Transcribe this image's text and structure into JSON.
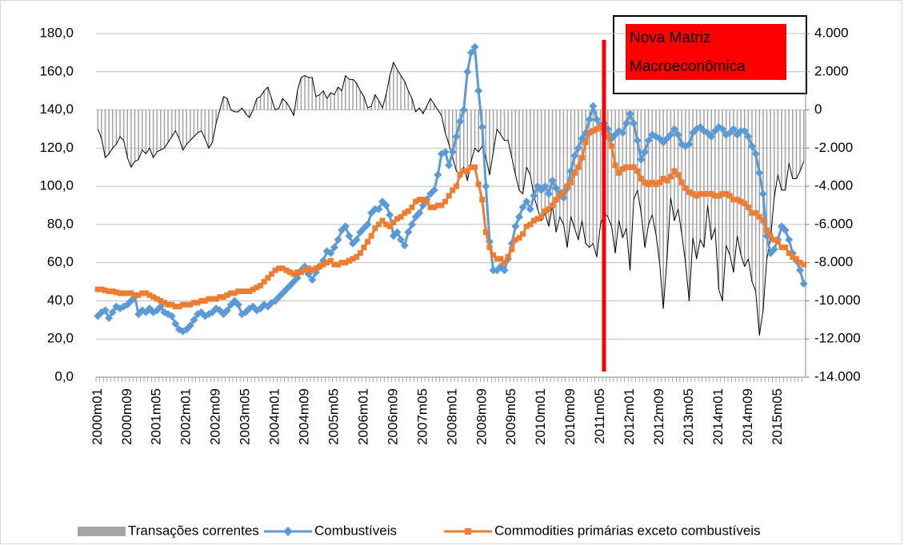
{
  "chart_data": {
    "type": "combo",
    "annotation": "Nova Matriz Macroeconômica",
    "categories": [
      "2000m01",
      null,
      null,
      null,
      null,
      null,
      null,
      null,
      "2000m09",
      null,
      null,
      null,
      null,
      null,
      null,
      null,
      "2001m05",
      null,
      null,
      null,
      null,
      null,
      null,
      null,
      "2002m01",
      null,
      null,
      null,
      null,
      null,
      null,
      null,
      "2002m09",
      null,
      null,
      null,
      null,
      null,
      null,
      null,
      "2003m05",
      null,
      null,
      null,
      null,
      null,
      null,
      null,
      "2004m01",
      null,
      null,
      null,
      null,
      null,
      null,
      null,
      "2004m09",
      null,
      null,
      null,
      null,
      null,
      null,
      null,
      "2005m05",
      null,
      null,
      null,
      null,
      null,
      null,
      null,
      "2006m01",
      null,
      null,
      null,
      null,
      null,
      null,
      null,
      "2006m09",
      null,
      null,
      null,
      null,
      null,
      null,
      null,
      "2007m05",
      null,
      null,
      null,
      null,
      null,
      null,
      null,
      "2008m01",
      null,
      null,
      null,
      null,
      null,
      null,
      null,
      "2008m09",
      null,
      null,
      null,
      null,
      null,
      null,
      null,
      "2009m05",
      null,
      null,
      null,
      null,
      null,
      null,
      null,
      "2010m01",
      null,
      null,
      null,
      null,
      null,
      null,
      null,
      "2010m09",
      null,
      null,
      null,
      null,
      null,
      null,
      null,
      "2011m05",
      null,
      null,
      null,
      null,
      null,
      null,
      null,
      "2012m01",
      null,
      null,
      null,
      null,
      null,
      null,
      null,
      "2012m09",
      null,
      null,
      null,
      null,
      null,
      null,
      null,
      "2013m05",
      null,
      null,
      null,
      null,
      null,
      null,
      null,
      "2014m01",
      null,
      null,
      null,
      null,
      null,
      null,
      null,
      "2014m09",
      null,
      null,
      null,
      null,
      null,
      null,
      null,
      "2015m05",
      null,
      null,
      null,
      null,
      null,
      null,
      null
    ],
    "series": [
      {
        "name": "Transações correntes",
        "type": "bar",
        "axis": "y2",
        "color": "#a6a6a6",
        "line_color": "#000000",
        "values": [
          -1000,
          -1500,
          -2500,
          -2300,
          -2000,
          -1800,
          -1400,
          -1600,
          -2500,
          -3000,
          -2700,
          -2600,
          -2100,
          -2300,
          -2000,
          -2500,
          -2200,
          -2100,
          -2000,
          -1700,
          -1400,
          -1100,
          -1500,
          -2100,
          -1800,
          -1600,
          -1400,
          -1200,
          -1100,
          -1500,
          -2000,
          -1700,
          -700,
          0,
          700,
          600,
          0,
          -100,
          -100,
          100,
          -200,
          -400,
          0,
          600,
          700,
          1000,
          1200,
          600,
          0,
          100,
          600,
          400,
          100,
          -300,
          1000,
          1700,
          1800,
          1700,
          1700,
          700,
          800,
          1000,
          600,
          900,
          800,
          1200,
          1000,
          1800,
          1600,
          1600,
          1400,
          1000,
          700,
          100,
          200,
          800,
          500,
          100,
          800,
          1800,
          2500,
          2100,
          1800,
          1500,
          1000,
          600,
          -100,
          100,
          -200,
          200,
          600,
          300,
          0,
          -300,
          -1200,
          -1800,
          -2500,
          -3200,
          -3400,
          -3000,
          -3700,
          -2700,
          -2000,
          -2200,
          -1900,
          -2500,
          -3400,
          -2200,
          -1000,
          -1300,
          -1600,
          -1600,
          -2500,
          -3400,
          -4200,
          -4400,
          -3000,
          -3400,
          -4500,
          -5200,
          -5800,
          -5400,
          -6100,
          -5000,
          -6400,
          -5600,
          -6000,
          -7200,
          -5600,
          -6200,
          -6800,
          -5800,
          -7000,
          -7200,
          -7000,
          -7700,
          -6000,
          -5400,
          -5600,
          -6100,
          -7500,
          -5800,
          -6700,
          -6200,
          -8400,
          -4700,
          -4200,
          -5400,
          -7200,
          -6000,
          -5500,
          -6500,
          -8000,
          -10400,
          -7800,
          -4600,
          -5800,
          -5200,
          -6500,
          -8000,
          -10000,
          -6700,
          -7800,
          -6800,
          -7200,
          -5000,
          -6800,
          -6200,
          -9400,
          -10000,
          -7100,
          -7600,
          -8500,
          -6600,
          -7600,
          -8200,
          -7800,
          -9000,
          -9500,
          -11800,
          -10500,
          -7800,
          -6800,
          -4600,
          -3400,
          -4200,
          -4200,
          -2800,
          -3600,
          -3600,
          -3200,
          -2700
        ]
      },
      {
        "name": "Combustíveis",
        "type": "line",
        "marker": "diamond",
        "color": "#5b9bd5",
        "values": [
          32,
          34,
          35,
          31,
          34,
          37,
          36,
          37,
          38,
          40,
          42,
          33,
          35,
          34,
          36,
          34,
          35,
          37,
          34,
          33,
          32,
          28,
          25,
          24,
          25,
          27,
          30,
          33,
          34,
          32,
          33,
          34,
          36,
          35,
          33,
          35,
          38,
          40,
          38,
          33,
          34,
          36,
          37,
          35,
          36,
          38,
          37,
          39,
          40,
          42,
          44,
          46,
          48,
          50,
          52,
          56,
          58,
          54,
          51,
          55,
          58,
          61,
          66,
          65,
          68,
          72,
          77,
          79,
          74,
          70,
          72,
          76,
          78,
          80,
          86,
          88,
          88,
          92,
          90,
          85,
          74,
          76,
          72,
          69,
          76,
          80,
          84,
          86,
          90,
          93,
          96,
          98,
          106,
          117,
          118,
          111,
          118,
          126,
          134,
          140,
          160,
          170,
          173,
          150,
          131,
          100,
          71,
          56,
          56,
          58,
          56,
          62,
          70,
          79,
          84,
          89,
          92,
          88,
          95,
          100,
          98,
          100,
          96,
          103,
          99,
          96,
          94,
          99,
          108,
          116,
          120,
          125,
          128,
          135,
          142,
          135,
          131,
          133,
          130,
          125,
          127,
          129,
          128,
          133,
          138,
          133,
          124,
          114,
          118,
          124,
          127,
          126,
          125,
          123,
          125,
          127,
          130,
          127,
          122,
          121,
          122,
          128,
          130,
          131,
          129,
          128,
          126,
          129,
          131,
          130,
          127,
          128,
          130,
          127,
          129,
          129,
          126,
          121,
          117,
          107,
          96,
          74,
          65,
          67,
          72,
          79,
          77,
          72,
          65,
          61,
          56,
          49
        ]
      },
      {
        "name": "Commodities primárias exceto combustíveis",
        "type": "line",
        "marker": "square",
        "color": "#ed7d31",
        "values": [
          46,
          46,
          45.5,
          45,
          45,
          44.5,
          44,
          44,
          44,
          44,
          43,
          43,
          44,
          44,
          43,
          42,
          41,
          40,
          39,
          38,
          38,
          37,
          37,
          38,
          38,
          38,
          39,
          39,
          40,
          40,
          41,
          41,
          41,
          42,
          42,
          43,
          44,
          44,
          45,
          45,
          45,
          45,
          46,
          47,
          48,
          50,
          52,
          54,
          56,
          57,
          57,
          56,
          55,
          54,
          55,
          55,
          56,
          57,
          56,
          57,
          58,
          59,
          60,
          61,
          59,
          59,
          60,
          60,
          61,
          62,
          63,
          65,
          68,
          71,
          74,
          78,
          80,
          82,
          80,
          79,
          81,
          83,
          84,
          86,
          87,
          89,
          92,
          93,
          93,
          92,
          89,
          89,
          90,
          90,
          92,
          95,
          98,
          100,
          106,
          108,
          108,
          110,
          110,
          101,
          93,
          76,
          68,
          64,
          62,
          62,
          60,
          63,
          67,
          72,
          73,
          75,
          79,
          80,
          82,
          83,
          84,
          87,
          88,
          90,
          93,
          95,
          97,
          100,
          102,
          107,
          110,
          115,
          123,
          128,
          129,
          130,
          131,
          128,
          126,
          121,
          111,
          107,
          109,
          110,
          110,
          110,
          108,
          104,
          102,
          101,
          102,
          101,
          102,
          104,
          103,
          105,
          108,
          106,
          102,
          99,
          97,
          96,
          95,
          96,
          96,
          96,
          96,
          95,
          95,
          96,
          96,
          95,
          93,
          93,
          92,
          91,
          89,
          86,
          86,
          84,
          82,
          77,
          74,
          72,
          71,
          68,
          68,
          65,
          63,
          62,
          60,
          59
        ]
      }
    ],
    "ylim": [
      0,
      180
    ],
    "yticks": [
      {
        "value": 0,
        "label": "0,0"
      },
      {
        "value": 20,
        "label": "20,0"
      },
      {
        "value": 40,
        "label": "40,0"
      },
      {
        "value": 60,
        "label": "60,0"
      },
      {
        "value": 80,
        "label": "80,0"
      },
      {
        "value": 100,
        "label": "100,0"
      },
      {
        "value": 120,
        "label": "120,0"
      },
      {
        "value": 140,
        "label": "140,0"
      },
      {
        "value": 160,
        "label": "160,0"
      },
      {
        "value": 180,
        "label": "180,0"
      }
    ],
    "y2lim": [
      -14000,
      4000
    ],
    "y2ticks": [
      {
        "value": -14000,
        "label": "-14.000"
      },
      {
        "value": -12000,
        "label": "-12.000"
      },
      {
        "value": -10000,
        "label": "-10.000"
      },
      {
        "value": -8000,
        "label": "-8.000"
      },
      {
        "value": -6000,
        "label": "-6.000"
      },
      {
        "value": -4000,
        "label": "-4.000"
      },
      {
        "value": -2000,
        "label": "-2.000"
      },
      0,
      {
        "value": 2000,
        "label": "2.000"
      },
      {
        "value": 4000,
        "label": "4.000"
      }
    ],
    "grid": true
  }
}
